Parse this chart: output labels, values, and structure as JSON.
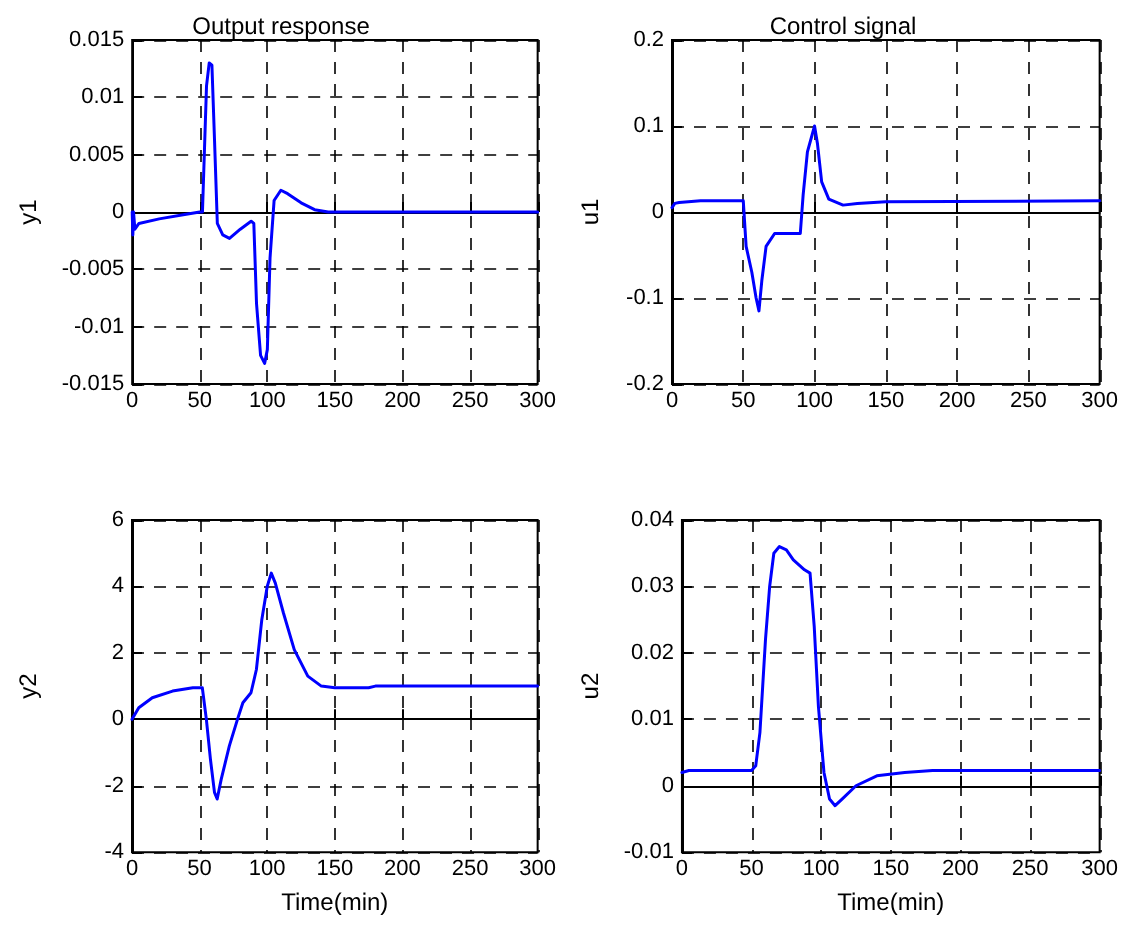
{
  "chart_data": [
    {
      "type": "line",
      "title": "Output response",
      "ylabel": "y1",
      "x": [
        0,
        0.5,
        1,
        2,
        5,
        20,
        40,
        50,
        52,
        55,
        57,
        59,
        61,
        63,
        67,
        72,
        80,
        88,
        90,
        92,
        95,
        98,
        100,
        102,
        105,
        110,
        115,
        125,
        135,
        145,
        300
      ],
      "series": [
        {
          "color": "#0000ff",
          "values": [
            0,
            -0.002,
            0,
            -0.0015,
            -0.001,
            -0.0006,
            -0.0002,
            0,
            0,
            0.011,
            0.013,
            0.0128,
            0.006,
            -0.001,
            -0.002,
            -0.0023,
            -0.0015,
            -0.0008,
            -0.001,
            -0.008,
            -0.0125,
            -0.0132,
            -0.012,
            -0.004,
            0.001,
            0.0019,
            0.0016,
            0.0008,
            0.0002,
            0,
            0
          ]
        }
      ],
      "xlim": [
        0,
        300
      ],
      "xticks": [
        0,
        50,
        100,
        150,
        200,
        250,
        300
      ],
      "ylim": [
        -0.015,
        0.015
      ],
      "yticks": [
        -0.015,
        -0.01,
        -0.005,
        0,
        0.005,
        0.01,
        0.015
      ],
      "grid": true,
      "marker": "none",
      "line_style": "solid"
    },
    {
      "type": "line",
      "title": "Control signal",
      "ylabel": "u1",
      "x": [
        0,
        2,
        5,
        20,
        50,
        52,
        56,
        59,
        61,
        63,
        66,
        72,
        80,
        90,
        92,
        95,
        100,
        102,
        105,
        110,
        120,
        130,
        150,
        300
      ],
      "series": [
        {
          "color": "#0000ff",
          "values": [
            0.005,
            0.01,
            0.011,
            0.013,
            0.013,
            -0.04,
            -0.07,
            -0.1,
            -0.115,
            -0.08,
            -0.04,
            -0.025,
            -0.025,
            -0.025,
            0.02,
            0.07,
            0.1,
            0.08,
            0.035,
            0.015,
            0.008,
            0.01,
            0.012,
            0.013
          ]
        }
      ],
      "xlim": [
        0,
        300
      ],
      "xticks": [
        0,
        50,
        100,
        150,
        200,
        250,
        300
      ],
      "ylim": [
        -0.2,
        0.2
      ],
      "yticks": [
        -0.2,
        -0.1,
        0,
        0.1,
        0.2
      ],
      "grid": true,
      "marker": "none",
      "line_style": "solid"
    },
    {
      "type": "line",
      "xlabel": "Time(min)",
      "ylabel": "y2",
      "x": [
        0,
        5,
        15,
        30,
        45,
        52,
        55,
        58,
        61,
        63,
        66,
        72,
        78,
        82,
        88,
        92,
        96,
        100,
        103,
        106,
        112,
        120,
        130,
        140,
        150,
        175,
        180,
        300
      ],
      "series": [
        {
          "color": "#0000ff",
          "values": [
            0,
            0.35,
            0.65,
            0.85,
            0.95,
            0.95,
            0,
            -1.2,
            -2.2,
            -2.4,
            -1.8,
            -0.8,
            0,
            0.5,
            0.8,
            1.5,
            3,
            4,
            4.4,
            4.1,
            3.2,
            2.1,
            1.3,
            1,
            0.95,
            0.95,
            1,
            1
          ]
        }
      ],
      "xlim": [
        0,
        300
      ],
      "xticks": [
        0,
        50,
        100,
        150,
        200,
        250,
        300
      ],
      "ylim": [
        -4,
        6
      ],
      "yticks": [
        -4,
        -2,
        0,
        2,
        4,
        6
      ],
      "grid": true,
      "marker": "none",
      "line_style": "solid"
    },
    {
      "type": "line",
      "xlabel": "Time(min)",
      "ylabel": "u2",
      "x": [
        0,
        5,
        50,
        53,
        56,
        58,
        60,
        63,
        66,
        70,
        75,
        80,
        88,
        92,
        95,
        98,
        102,
        106,
        110,
        115,
        125,
        140,
        160,
        180,
        300
      ],
      "series": [
        {
          "color": "#0000ff",
          "values": [
            0.002,
            0.0023,
            0.0023,
            0.003,
            0.008,
            0.015,
            0.022,
            0.03,
            0.035,
            0.036,
            0.0355,
            0.034,
            0.0325,
            0.032,
            0.024,
            0.012,
            0.002,
            -0.002,
            -0.003,
            -0.002,
            0,
            0.0015,
            0.002,
            0.0023,
            0.0023
          ]
        }
      ],
      "xlim": [
        0,
        300
      ],
      "xticks": [
        0,
        50,
        100,
        150,
        200,
        250,
        300
      ],
      "ylim": [
        -0.01,
        0.04
      ],
      "yticks": [
        -0.01,
        0,
        0.01,
        0.02,
        0.03,
        0.04
      ],
      "grid": true,
      "marker": "none",
      "line_style": "solid"
    }
  ]
}
